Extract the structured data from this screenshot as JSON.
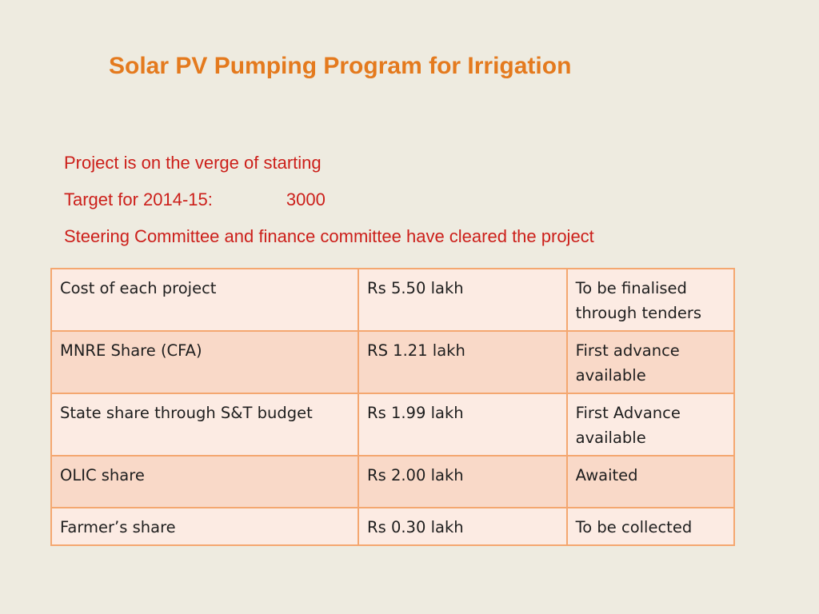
{
  "title": "Solar PV Pumping Program for Irrigation",
  "bullets": {
    "line1": "Project is on the verge of starting",
    "target_label": "Target for 2014-15:",
    "target_value": "3000",
    "line3": "Steering Committee and finance committee have cleared the project"
  },
  "table": {
    "rows": [
      {
        "item": "Cost of each project",
        "amount": "Rs 5.50 lakh",
        "status": "To be finalised through tenders"
      },
      {
        "item": "MNRE Share (CFA)",
        "amount": "RS 1.21 lakh",
        "status": "First advance available"
      },
      {
        "item": "State share through S&T budget",
        "amount": "Rs 1.99 lakh",
        "status": "First Advance available"
      },
      {
        "item": "OLIC share",
        "amount": "Rs 2.00 lakh",
        "status": "Awaited"
      },
      {
        "item": "Farmer’s share",
        "amount": "Rs 0.30 lakh",
        "status": "To be collected"
      }
    ]
  },
  "colors": {
    "title": "#e47a1e",
    "bullet_text": "#cc1f1a",
    "background": "#eeebe0",
    "table_border": "#f4a770",
    "row_light": "#fcebe3",
    "row_dark": "#f9d9c8"
  }
}
